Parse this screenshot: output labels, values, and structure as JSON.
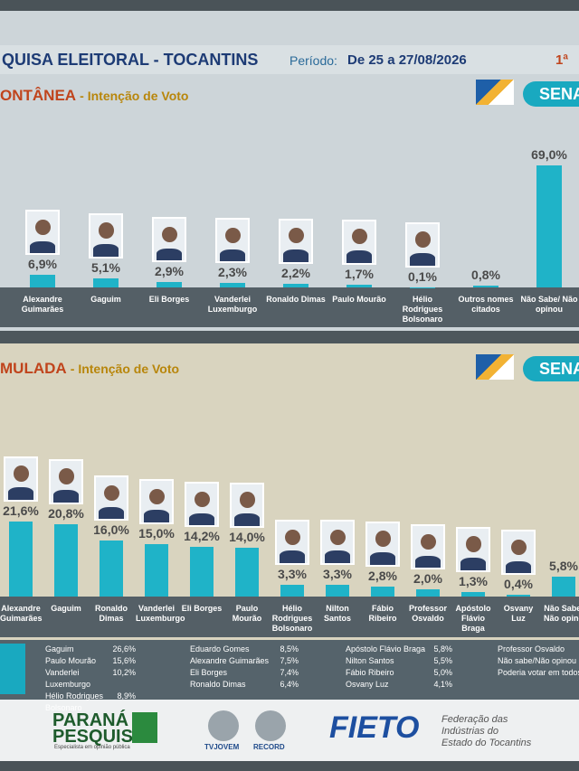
{
  "header": {
    "title": "QUISA ELEITORAL - TOCANTINS",
    "period_label": "Período:",
    "period": "De 25 a 27/08/2026",
    "round": "1ª"
  },
  "chart_data": [
    {
      "type": "bar",
      "section": "ONTÂNEA",
      "subtitle": "- Intenção de Voto",
      "badge": "SENA",
      "color": "#1fb3c8",
      "categories": [
        "Alexandre Guimarães",
        "Gaguim",
        "Eli Borges",
        "Vanderlei Luxemburgo",
        "Ronaldo Dimas",
        "Paulo Mourão",
        "Hélio Rodrigues Bolsonaro",
        "Outros nomes citados",
        "Não Sabe/ Não opinou"
      ],
      "values": [
        6.9,
        5.1,
        2.9,
        2.3,
        2.2,
        1.7,
        0.1,
        0.8,
        69.0
      ],
      "value_labels": [
        "6,9%",
        "5,1%",
        "2,9%",
        "2,3%",
        "2,2%",
        "1,7%",
        "0,1%",
        "0,8%",
        "69,0%"
      ]
    },
    {
      "type": "bar",
      "section": "MULADA",
      "subtitle": "- Intenção de Voto",
      "badge": "SENA",
      "color": "#1fb3c8",
      "categories": [
        "Alexandre Guimarães",
        "Gaguim",
        "Ronaldo Dimas",
        "Vanderlei Luxemburgo",
        "Eli Borges",
        "Paulo Mourão",
        "Hélio Rodrigues Bolsonaro",
        "Nilton Santos",
        "Fábio Ribeiro",
        "Professor Osvaldo",
        "Apóstolo Flávio Braga",
        "Osvany Luz",
        "Não Sabe/ Não opino"
      ],
      "values": [
        21.6,
        20.8,
        16.0,
        15.0,
        14.2,
        14.0,
        3.3,
        3.3,
        2.8,
        2.0,
        1.3,
        0.4,
        5.8
      ],
      "value_labels": [
        "21,6%",
        "20,8%",
        "16,0%",
        "15,0%",
        "14,2%",
        "14,0%",
        "3,3%",
        "3,3%",
        "2,8%",
        "2,0%",
        "1,3%",
        "0,4%",
        "5,8%"
      ]
    }
  ],
  "table": {
    "columns": [
      [
        [
          "Gaguim",
          "26,6%"
        ],
        [
          "Paulo Mourão",
          "15,6%"
        ],
        [
          "Vanderlei Luxemburgo",
          "10,2%"
        ],
        [
          "Hélio Rodrigues Bolsonaro",
          "8,9%"
        ]
      ],
      [
        [
          "Eduardo Gomes",
          "8,5%"
        ],
        [
          "Alexandre Guimarães",
          "7,5%"
        ],
        [
          "Eli Borges",
          "7,4%"
        ],
        [
          "Ronaldo Dimas",
          "6,4%"
        ]
      ],
      [
        [
          "Apóstolo Flávio Braga",
          "5,8%"
        ],
        [
          "Nilton Santos",
          "5,5%"
        ],
        [
          "Fábio Ribeiro",
          "5,0%"
        ],
        [
          "Osvany Luz",
          "4,1%"
        ]
      ],
      [
        [
          "Professor Osvaldo"
        ],
        [
          "Não sabe/Não opinou"
        ],
        [
          "Poderia votar em todos"
        ]
      ]
    ]
  },
  "footer": {
    "pp": "PARANÁ PESQUISAS",
    "pp_tag": "Especialista em opinião pública",
    "tv1": "TVJOVEM",
    "tv2": "RECORD",
    "fieto": "FIETO",
    "fieto_desc": "Federação das Indústrias do Estado do Tocantins"
  }
}
